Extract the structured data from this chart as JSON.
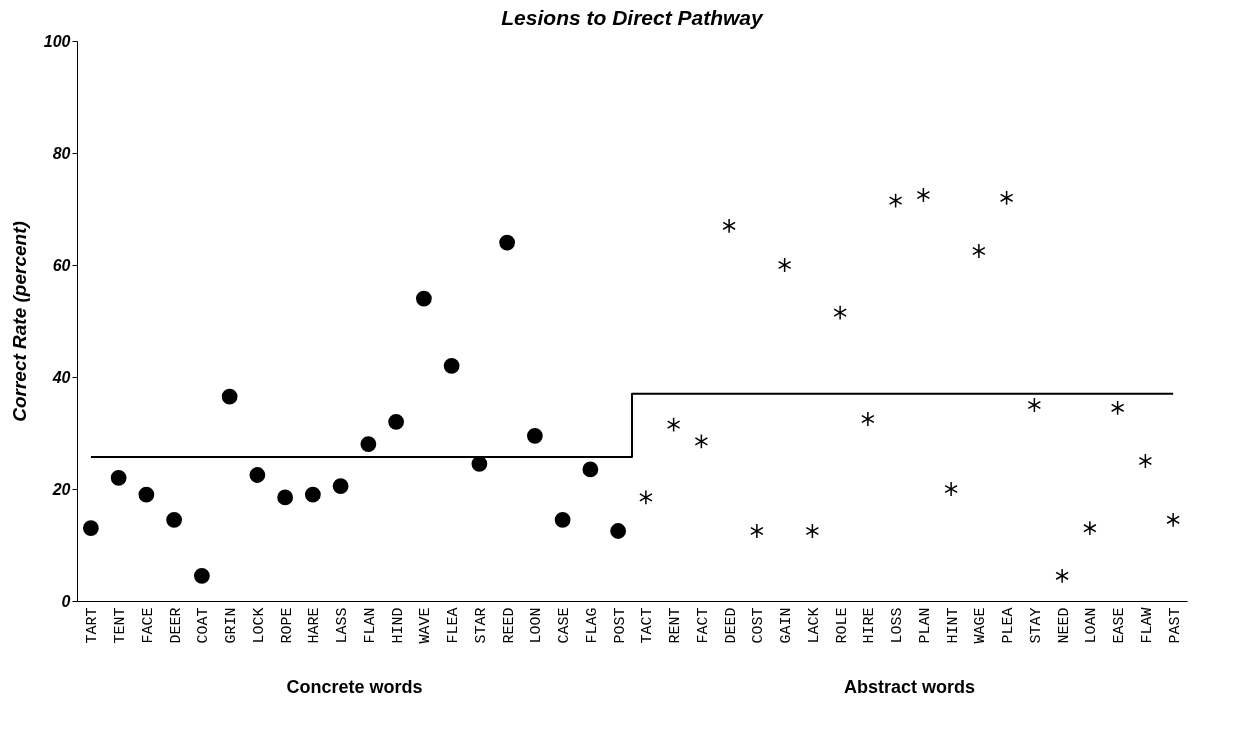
{
  "chart_data": {
    "type": "scatter",
    "title": "Lesions to Direct Pathway",
    "ylabel": "Correct Rate (percent)",
    "categories": [
      "TART",
      "TENT",
      "FACE",
      "DEER",
      "COAT",
      "GRIN",
      "LOCK",
      "ROPE",
      "HARE",
      "LASS",
      "FLAN",
      "HIND",
      "WAVE",
      "FLEA",
      "STAR",
      "REED",
      "LOON",
      "CASE",
      "FLAG",
      "POST",
      "TACT",
      "RENT",
      "FACT",
      "DEED",
      "COST",
      "GAIN",
      "LACK",
      "ROLE",
      "HIRE",
      "LOSS",
      "PLAN",
      "HINT",
      "WAGE",
      "PLEA",
      "STAY",
      "NEED",
      "LOAN",
      "EASE",
      "FLAW",
      "PAST"
    ],
    "series": [
      {
        "marker": "circle",
        "color": "#000000",
        "values": [
          13,
          22,
          19,
          14.5,
          4.5,
          36.5,
          22.5,
          18.5,
          19,
          20.5,
          28,
          32,
          54,
          42,
          24.5,
          64,
          29.5,
          14.5,
          23.5,
          12.5,
          null,
          null,
          null,
          null,
          null,
          null,
          null,
          null,
          null,
          null,
          null,
          null,
          null,
          null,
          null,
          null,
          null,
          null,
          null,
          null
        ]
      },
      {
        "marker": "cross",
        "color": "#000000",
        "values": [
          null,
          null,
          null,
          null,
          null,
          null,
          null,
          null,
          null,
          null,
          null,
          null,
          null,
          null,
          null,
          null,
          null,
          null,
          null,
          null,
          18.5,
          31.5,
          28.5,
          67,
          12.5,
          60,
          12.5,
          51.5,
          32.5,
          71.5,
          72.5,
          20,
          62.5,
          72,
          35,
          4.5,
          13,
          34.5,
          25,
          14.5
        ]
      },
      {
        "type": "step",
        "color": "#000000",
        "values": [
          25.7,
          25.7,
          25.7,
          25.7,
          25.7,
          25.7,
          25.7,
          25.7,
          25.7,
          25.7,
          25.7,
          25.7,
          25.7,
          25.7,
          25.7,
          25.7,
          25.7,
          25.7,
          25.7,
          25.7,
          37,
          37,
          37,
          37,
          37,
          37,
          37,
          37,
          37,
          37,
          37,
          37,
          37,
          37,
          37,
          37,
          37,
          37,
          37,
          37
        ]
      }
    ],
    "annotations": [
      "Concrete words",
      "Abstract words"
    ],
    "ylim": [
      0,
      100
    ],
    "yticks": [
      0,
      20,
      40,
      60,
      80,
      100
    ],
    "grid": false
  }
}
